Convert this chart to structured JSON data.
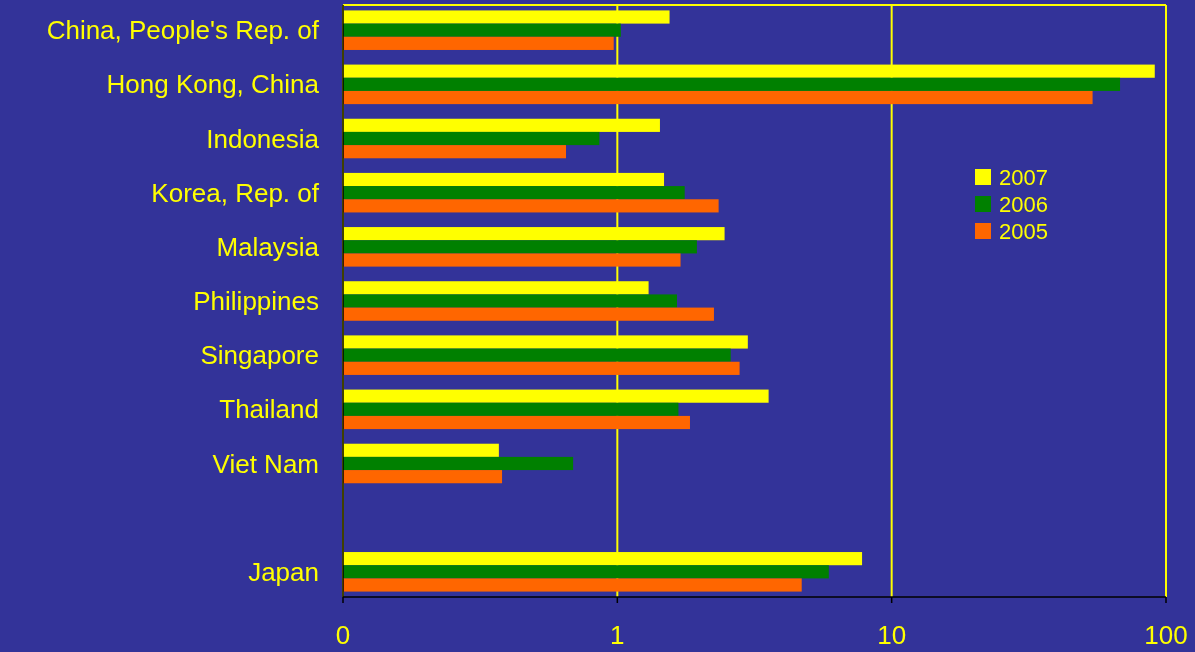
{
  "chart_data": {
    "type": "bar",
    "orientation": "horizontal",
    "log": "x",
    "grid": "x",
    "legend": "top right",
    "categories": [
      "China, People's Rep. of",
      "Hong Kong, China",
      "Indonesia",
      "Korea, Rep. of",
      "Malaysia",
      "Philippines",
      "Singapore",
      "Thailand",
      "Viet Nam",
      null,
      "Japan"
    ],
    "series": [
      {
        "name": "2007",
        "color": "#ffff00",
        "values": [
          1.55,
          91,
          1.43,
          1.48,
          2.46,
          1.3,
          2.99,
          3.56,
          0.37,
          null,
          7.8
        ]
      },
      {
        "name": "2006",
        "color": "#008000",
        "values": [
          1.03,
          68,
          0.86,
          1.76,
          1.95,
          1.65,
          2.59,
          1.67,
          0.69,
          null,
          5.9
        ]
      },
      {
        "name": "2005",
        "color": "#ff6600",
        "values": [
          0.97,
          54,
          0.65,
          2.34,
          1.7,
          2.25,
          2.79,
          1.84,
          0.38,
          null,
          4.7
        ]
      }
    ],
    "xlim": [
      0.1,
      100
    ],
    "xticks": [
      {
        "value": 0.1,
        "label": "0"
      },
      1,
      10,
      100
    ]
  }
}
